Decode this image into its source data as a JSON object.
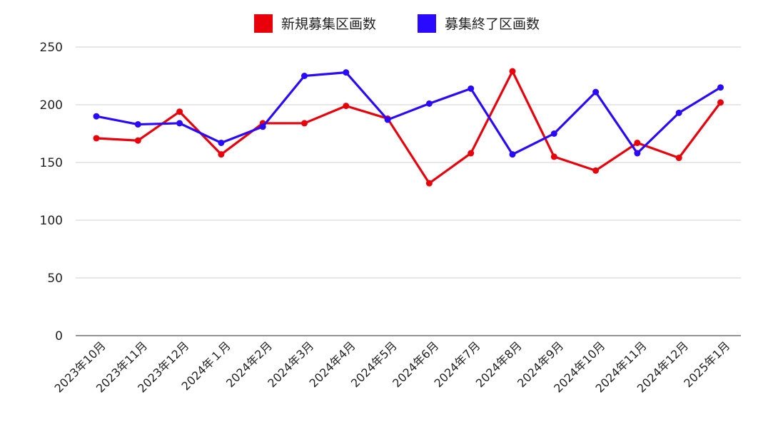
{
  "chart_data": {
    "type": "line",
    "categories": [
      "2023年10月",
      "2023年11月",
      "2023年12月",
      "2024年１月",
      "2024年2月",
      "2024年3月",
      "2024年4月",
      "2024年5月",
      "2024年6月",
      "2024年7月",
      "2024年8月",
      "2024年9月",
      "2024年10月",
      "2024年11月",
      "2024年12月",
      "2025年1月"
    ],
    "series": [
      {
        "name": "新規募集区画数",
        "color": "#e8000b",
        "values": [
          171,
          169,
          194,
          157,
          184,
          184,
          199,
          188,
          132,
          158,
          229,
          155,
          143,
          167,
          154,
          202
        ]
      },
      {
        "name": "募集終了区画数",
        "color": "#2a0aff",
        "values": [
          190,
          183,
          184,
          167,
          181,
          225,
          228,
          187,
          201,
          214,
          157,
          175,
          211,
          158,
          193,
          215
        ]
      }
    ],
    "ylim": [
      0,
      250
    ],
    "yticks": [
      0,
      50,
      100,
      150,
      200,
      250
    ],
    "grid": true,
    "legend_position": "top"
  }
}
